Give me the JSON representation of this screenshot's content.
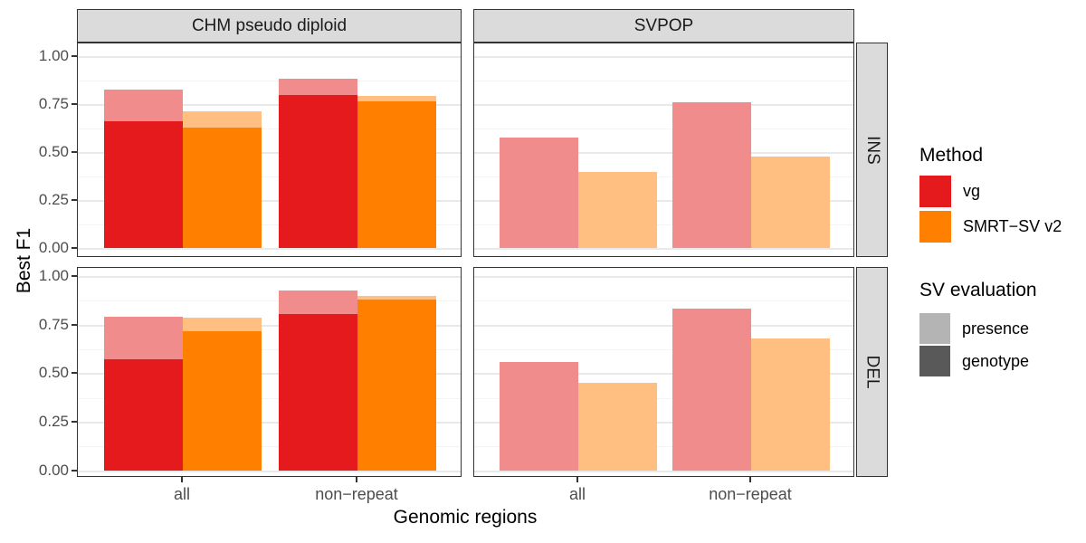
{
  "chart_data": {
    "type": "bar",
    "title": "",
    "xlabel": "Genomic regions",
    "ylabel": "Best F1",
    "col_facets": [
      "CHM pseudo diploid",
      "SVPOP"
    ],
    "row_facets": [
      "INS",
      "DEL"
    ],
    "categories": [
      "all",
      "non−repeat"
    ],
    "y_ticks": [
      "1.00",
      "0.75",
      "0.50",
      "0.25",
      "0.00"
    ],
    "ylim": [
      0,
      1
    ],
    "grid": "major+minor",
    "legend_position": "right",
    "methods": [
      {
        "label": "vg",
        "color": "#E41A1C",
        "presence_color": "#F18C8D"
      },
      {
        "label": "SMRT−SV v2",
        "color": "#FF7F00",
        "presence_color": "#FFBF80"
      }
    ],
    "legend": {
      "method_title": "Method",
      "evaluation_title": "SV evaluation",
      "evaluation_items": [
        {
          "label": "presence",
          "color": "#B4B4B4"
        },
        {
          "label": "genotype",
          "color": "#595959"
        }
      ]
    },
    "panels": [
      {
        "col": "CHM pseudo diploid",
        "row": "INS",
        "bars": [
          {
            "region": "all",
            "method": "vg",
            "presence": 0.83,
            "genotype": 0.665
          },
          {
            "region": "all",
            "method": "SMRT−SV v2",
            "presence": 0.715,
            "genotype": 0.63
          },
          {
            "region": "non−repeat",
            "method": "vg",
            "presence": 0.885,
            "genotype": 0.8
          },
          {
            "region": "non−repeat",
            "method": "SMRT−SV v2",
            "presence": 0.795,
            "genotype": 0.77
          }
        ]
      },
      {
        "col": "SVPOP",
        "row": "INS",
        "bars": [
          {
            "region": "all",
            "method": "vg",
            "presence": 0.58,
            "genotype": null
          },
          {
            "region": "all",
            "method": "SMRT−SV v2",
            "presence": 0.4,
            "genotype": null
          },
          {
            "region": "non−repeat",
            "method": "vg",
            "presence": 0.765,
            "genotype": null
          },
          {
            "region": "non−repeat",
            "method": "SMRT−SV v2",
            "presence": 0.48,
            "genotype": null
          }
        ]
      },
      {
        "col": "CHM pseudo diploid",
        "row": "DEL",
        "bars": [
          {
            "region": "all",
            "method": "vg",
            "presence": 0.795,
            "genotype": 0.575
          },
          {
            "region": "all",
            "method": "SMRT−SV v2",
            "presence": 0.79,
            "genotype": 0.72
          },
          {
            "region": "non−repeat",
            "method": "vg",
            "presence": 0.93,
            "genotype": 0.81
          },
          {
            "region": "non−repeat",
            "method": "SMRT−SV v2",
            "presence": 0.9,
            "genotype": 0.885
          }
        ]
      },
      {
        "col": "SVPOP",
        "row": "DEL",
        "bars": [
          {
            "region": "all",
            "method": "vg",
            "presence": 0.56,
            "genotype": null
          },
          {
            "region": "all",
            "method": "SMRT−SV v2",
            "presence": 0.455,
            "genotype": null
          },
          {
            "region": "non−repeat",
            "method": "vg",
            "presence": 0.835,
            "genotype": null
          },
          {
            "region": "non−repeat",
            "method": "SMRT−SV v2",
            "presence": 0.685,
            "genotype": null
          }
        ]
      }
    ]
  }
}
